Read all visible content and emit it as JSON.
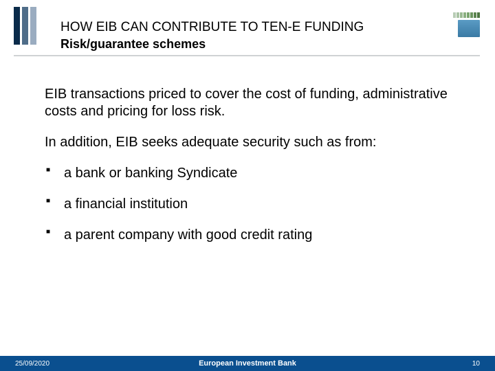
{
  "logo_left_colors": [
    "#0a2b4a",
    "#4f6d89",
    "#9aacc0"
  ],
  "logo_right_bar_colors": [
    "#b9cdb6",
    "#a9c3a4",
    "#99b992",
    "#89af80",
    "#7aa56e",
    "#6b955f",
    "#5c8550",
    "#4d7541"
  ],
  "header": {
    "title_main": "HOW EIB CAN CONTRIBUTE TO TEN-E FUNDING",
    "title_sub": "Risk/guarantee schemes"
  },
  "content": {
    "para1": "EIB transactions priced to cover the cost of funding, administrative costs and pricing for loss risk.",
    "para2": "In addition, EIB seeks adequate security such as from:",
    "bullets": [
      "a bank or banking Syndicate",
      "a financial institution",
      "a parent company with good credit rating"
    ]
  },
  "footer": {
    "date": "25/09/2020",
    "org": "European Investment Bank",
    "page": "10",
    "bg": "#0a4f8f"
  }
}
